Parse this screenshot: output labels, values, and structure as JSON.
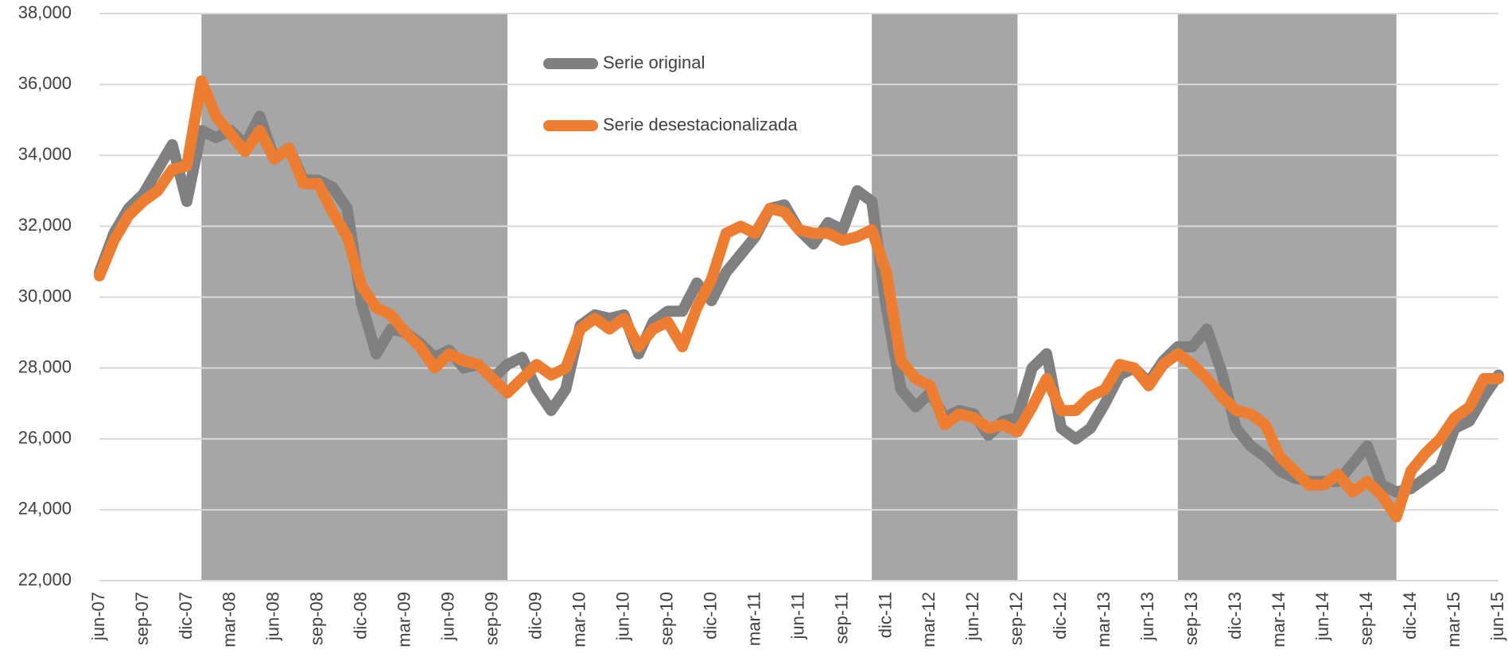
{
  "chart_data": {
    "type": "line",
    "categories": [
      "jun-07",
      null,
      null,
      "sep-07",
      null,
      null,
      "dic-07",
      null,
      null,
      "mar-08",
      null,
      null,
      "jun-08",
      null,
      null,
      "sep-08",
      null,
      null,
      "dic-08",
      null,
      null,
      "mar-09",
      null,
      null,
      "jun-09",
      null,
      null,
      "sep-09",
      null,
      null,
      "dic-09",
      null,
      null,
      "mar-10",
      null,
      null,
      "jun-10",
      null,
      null,
      "sep-10",
      null,
      null,
      "dic-10",
      null,
      null,
      "mar-11",
      null,
      null,
      "jun-11",
      null,
      null,
      "sep-11",
      null,
      null,
      "dic-11",
      null,
      null,
      "mar-12",
      null,
      null,
      "jun-12",
      null,
      null,
      "sep-12",
      null,
      null,
      "dic-12",
      null,
      null,
      "mar-13",
      null,
      null,
      "jun-13",
      null,
      null,
      "sep-13",
      null,
      null,
      "dic-13",
      null,
      null,
      "mar-14",
      null,
      null,
      "jun-14",
      null,
      null,
      "sep-14",
      null,
      null,
      "dic-14",
      null,
      null,
      "mar-15",
      null,
      null,
      "jun-15"
    ],
    "series": [
      {
        "name": "Serie original",
        "color": "#808080",
        "values": [
          30700,
          31800,
          32500,
          32900,
          33600,
          34300,
          32700,
          34700,
          34500,
          34700,
          34300,
          35100,
          33900,
          34200,
          33300,
          33300,
          33100,
          32500,
          29800,
          28400,
          29100,
          29000,
          28700,
          28300,
          28500,
          28000,
          28100,
          27700,
          28100,
          28300,
          27400,
          26800,
          27400,
          29200,
          29500,
          29400,
          29500,
          28400,
          29300,
          29600,
          29600,
          30400,
          29900,
          30700,
          31200,
          31700,
          32500,
          32600,
          31900,
          31500,
          32100,
          31900,
          33000,
          32700,
          29700,
          27400,
          26900,
          27300,
          26600,
          26800,
          26700,
          26100,
          26500,
          26600,
          28000,
          28400,
          26300,
          26000,
          26300,
          27000,
          27800,
          28000,
          27600,
          28200,
          28600,
          28600,
          29100,
          27900,
          26300,
          25800,
          25500,
          25100,
          24900,
          24800,
          24800,
          24800,
          25300,
          25800,
          24700,
          24500,
          24600,
          24900,
          25200,
          26300,
          26500,
          27200,
          27800
        ]
      },
      {
        "name": "Serie desestacionalizada",
        "color": "#ED7D31",
        "values": [
          30600,
          31600,
          32300,
          32700,
          33000,
          33600,
          33700,
          36100,
          35100,
          34600,
          34100,
          34700,
          33900,
          34200,
          33200,
          33200,
          32400,
          31700,
          30300,
          29700,
          29500,
          29000,
          28600,
          28000,
          28400,
          28200,
          28100,
          27700,
          27300,
          27700,
          28100,
          27800,
          28000,
          29100,
          29400,
          29100,
          29400,
          28600,
          29100,
          29300,
          28600,
          29700,
          30500,
          31800,
          32000,
          31800,
          32500,
          32400,
          31900,
          31800,
          31800,
          31600,
          31700,
          31900,
          30700,
          28200,
          27700,
          27500,
          26400,
          26700,
          26600,
          26300,
          26400,
          26200,
          26900,
          27700,
          26800,
          26800,
          27200,
          27400,
          28100,
          28000,
          27500,
          28100,
          28400,
          28100,
          27700,
          27200,
          26800,
          26700,
          26400,
          25500,
          25100,
          24700,
          24700,
          25000,
          24500,
          24800,
          24400,
          23800,
          25100,
          25600,
          26000,
          26600,
          26900,
          27700,
          27700
        ]
      }
    ],
    "shaded": [
      {
        "from": 7,
        "to": 28
      },
      {
        "from": 53,
        "to": 63
      },
      {
        "from": 74,
        "to": 89
      }
    ],
    "shade_color": "#a6a6a6",
    "ylim": [
      22000,
      38000
    ],
    "yticks": [
      {
        "value": 22000,
        "label": "22,000"
      },
      {
        "value": 24000,
        "label": "24,000"
      },
      {
        "value": 26000,
        "label": "26,000"
      },
      {
        "value": 28000,
        "label": "28,000"
      },
      {
        "value": 30000,
        "label": "30,000"
      },
      {
        "value": 32000,
        "label": "32,000"
      },
      {
        "value": 34000,
        "label": "34,000"
      },
      {
        "value": 36000,
        "label": "36,000"
      },
      {
        "value": 38000,
        "label": "38,000"
      }
    ],
    "grid": true
  }
}
